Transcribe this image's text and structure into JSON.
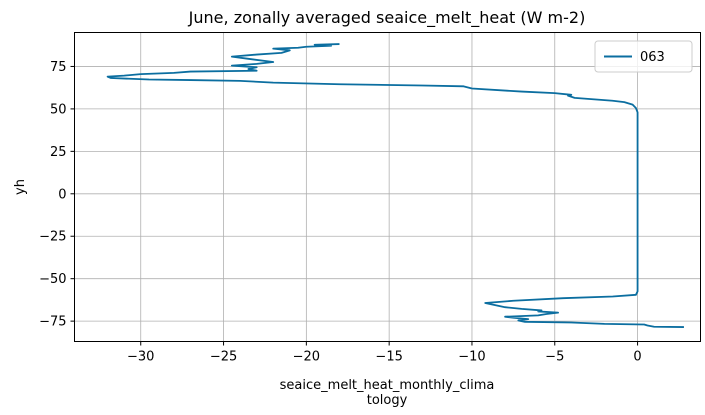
{
  "chart_data": {
    "type": "line",
    "title": "June, zonally averaged seaice_melt_heat (W m-2)",
    "xlabel_line1": "seaice_melt_heat_monthly_clima",
    "xlabel_line2": "tology",
    "ylabel": "yh",
    "xlim": [
      -34,
      3.8
    ],
    "ylim": [
      -87,
      95
    ],
    "x_ticks": [
      -30,
      -25,
      -20,
      -15,
      -10,
      -5,
      0
    ],
    "x_tick_labels": [
      "−30",
      "−25",
      "−20",
      "−15",
      "−10",
      "−5",
      "0"
    ],
    "y_ticks": [
      -75,
      -50,
      -25,
      0,
      25,
      50,
      75
    ],
    "y_tick_labels": [
      "−75",
      "−50",
      "−25",
      "0",
      "25",
      "50",
      "75"
    ],
    "grid": true,
    "legend_position": "top-right",
    "colors": {
      "series": "#0b6ea0"
    },
    "series": [
      {
        "name": "063",
        "points": [
          [
            2.8,
            -78.5
          ],
          [
            1.0,
            -78.3
          ],
          [
            0.6,
            -77.6
          ],
          [
            0.4,
            -77.0
          ],
          [
            -2.0,
            -76.6
          ],
          [
            -4.0,
            -75.8
          ],
          [
            -6.8,
            -75.4
          ],
          [
            -7.2,
            -74.6
          ],
          [
            -6.6,
            -73.8
          ],
          [
            -7.5,
            -73.0
          ],
          [
            -8.0,
            -72.4
          ],
          [
            -6.0,
            -71.6
          ],
          [
            -5.5,
            -70.8
          ],
          [
            -4.8,
            -70.0
          ],
          [
            -6.0,
            -69.3
          ],
          [
            -5.8,
            -68.7
          ],
          [
            -7.0,
            -67.8
          ],
          [
            -8.0,
            -66.8
          ],
          [
            -9.2,
            -64.3
          ],
          [
            -7.5,
            -63.0
          ],
          [
            -4.5,
            -61.5
          ],
          [
            -1.5,
            -60.5
          ],
          [
            -0.1,
            -59.5
          ],
          [
            0.0,
            -57.5
          ],
          [
            0.0,
            -40.0
          ],
          [
            0.0,
            0.0
          ],
          [
            0.0,
            40.0
          ],
          [
            0.0,
            48.0
          ],
          [
            -0.1,
            50.5
          ],
          [
            -0.3,
            52.5
          ],
          [
            -0.8,
            54.0
          ],
          [
            -1.5,
            54.8
          ],
          [
            -3.8,
            56.5
          ],
          [
            -4.2,
            57.8
          ],
          [
            -4.0,
            58.3
          ],
          [
            -5.0,
            59.3
          ],
          [
            -7.0,
            60.2
          ],
          [
            -10.0,
            62.0
          ],
          [
            -10.5,
            63.3
          ],
          [
            -13.0,
            63.8
          ],
          [
            -18.0,
            64.5
          ],
          [
            -22.0,
            65.5
          ],
          [
            -24.0,
            66.5
          ],
          [
            -27.0,
            67.0
          ],
          [
            -29.5,
            67.3
          ],
          [
            -31.8,
            68.2
          ],
          [
            -32.0,
            69.0
          ],
          [
            -31.0,
            69.6
          ],
          [
            -30.0,
            70.5
          ],
          [
            -28.0,
            71.2
          ],
          [
            -27.0,
            72.0
          ],
          [
            -23.0,
            72.5
          ],
          [
            -23.5,
            73.5
          ],
          [
            -23.0,
            74.5
          ],
          [
            -24.5,
            75.5
          ],
          [
            -23.0,
            76.5
          ],
          [
            -22.0,
            77.6
          ],
          [
            -23.5,
            79.5
          ],
          [
            -24.5,
            80.8
          ],
          [
            -23.0,
            82.0
          ],
          [
            -21.5,
            83.0
          ],
          [
            -21.0,
            84.5
          ],
          [
            -22.0,
            85.5
          ],
          [
            -20.5,
            86.0
          ],
          [
            -20.0,
            86.6
          ],
          [
            -18.5,
            87.2
          ],
          [
            -19.5,
            87.8
          ],
          [
            -18.0,
            88.2
          ]
        ]
      }
    ]
  }
}
